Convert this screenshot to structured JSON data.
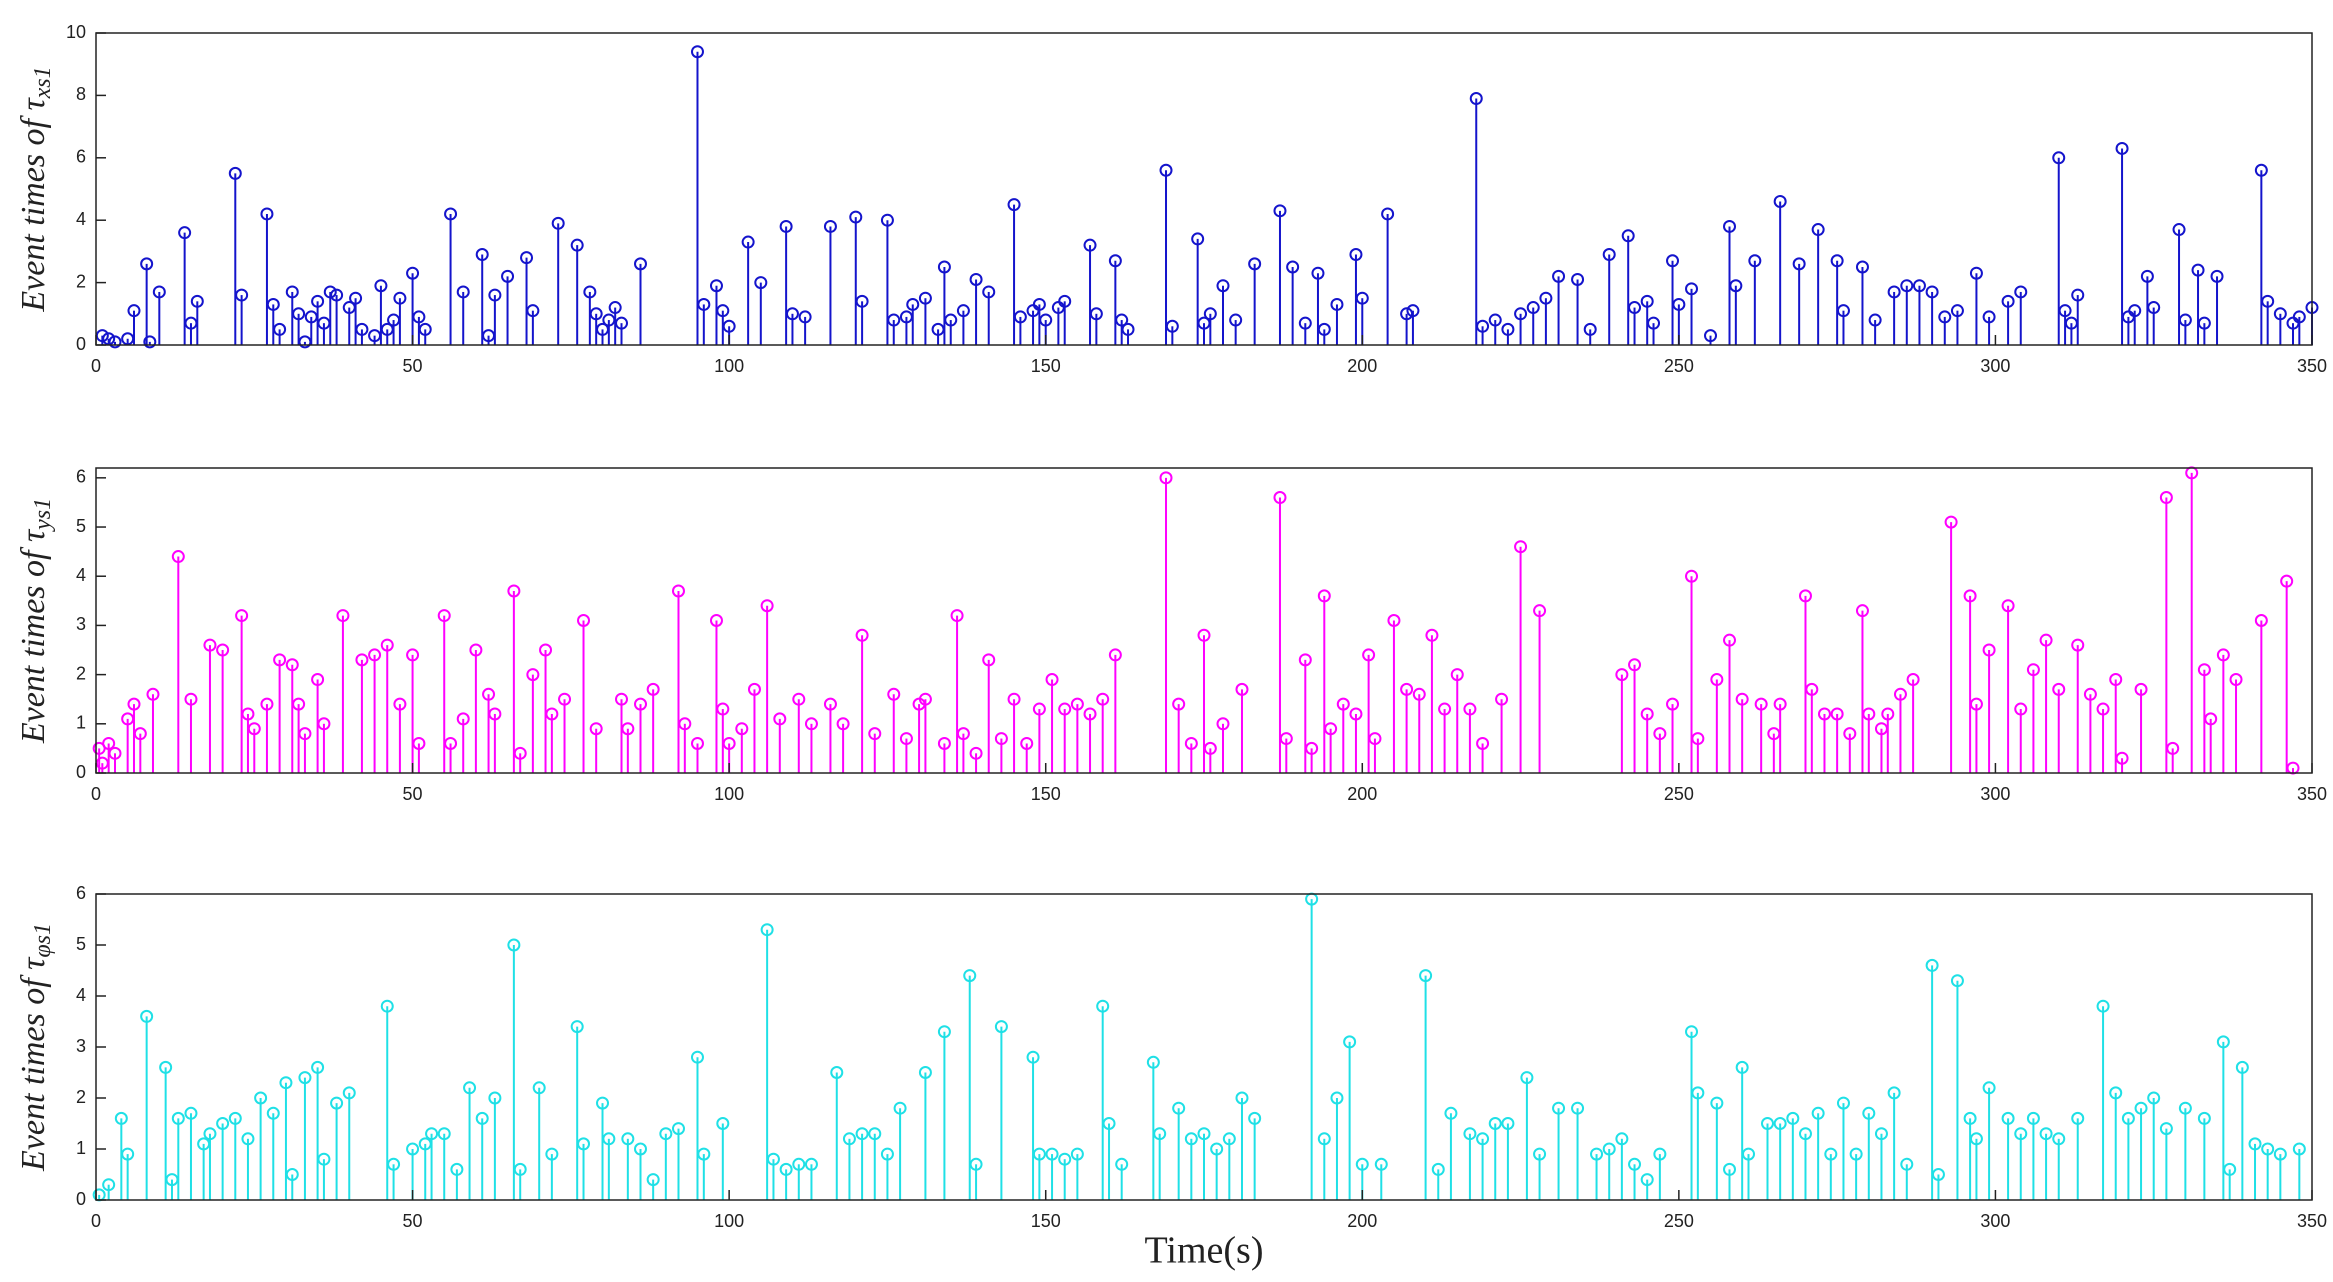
{
  "chart_data": [
    {
      "type": "stem",
      "ylabel": "Event times of τ",
      "ylabel_sub": "xs1",
      "color": "#1414cc",
      "xlim": [
        0,
        350
      ],
      "xticks": [
        0,
        50,
        100,
        150,
        200,
        250,
        300,
        350
      ],
      "ylim": [
        0,
        10
      ],
      "yticks": [
        0,
        2,
        4,
        6,
        8,
        10
      ],
      "x": [
        1,
        2,
        3,
        5,
        6,
        8,
        8.5,
        10,
        14,
        15,
        16,
        22,
        23,
        27,
        28,
        29,
        31,
        32,
        33,
        34,
        35,
        36,
        37,
        38,
        40,
        41,
        42,
        44,
        45,
        46,
        47,
        48,
        50,
        51,
        52,
        56,
        58,
        61,
        62,
        63,
        65,
        68,
        69,
        73,
        76,
        78,
        79,
        80,
        81,
        82,
        83,
        86,
        95,
        96,
        98,
        99,
        100,
        103,
        105,
        109,
        110,
        112,
        116,
        120,
        121,
        125,
        126,
        128,
        129,
        131,
        133,
        134,
        135,
        137,
        139,
        141,
        145,
        146,
        148,
        149,
        150,
        152,
        153,
        157,
        158,
        161,
        162,
        163,
        169,
        170,
        174,
        175,
        176,
        178,
        180,
        183,
        187,
        189,
        191,
        193,
        194,
        196,
        199,
        200,
        204,
        207,
        208,
        218,
        219,
        221,
        223,
        225,
        227,
        229,
        231,
        234,
        236,
        239,
        242,
        243,
        245,
        246,
        249,
        250,
        252,
        255,
        258,
        259,
        262,
        266,
        269,
        272,
        275,
        276,
        279,
        281,
        284,
        286,
        288,
        290,
        292,
        294,
        297,
        299,
        302,
        304,
        310,
        311,
        312,
        313,
        320,
        321,
        322,
        324,
        325,
        329,
        330,
        332,
        333,
        335,
        342,
        343,
        345,
        347,
        348,
        350
      ],
      "values": [
        0.3,
        0.2,
        0.1,
        0.2,
        1.1,
        2.6,
        0.1,
        1.7,
        3.6,
        0.7,
        1.4,
        5.5,
        1.6,
        4.2,
        1.3,
        0.5,
        1.7,
        1.0,
        0.1,
        0.9,
        1.4,
        0.7,
        1.7,
        1.6,
        1.2,
        1.5,
        0.5,
        0.3,
        1.9,
        0.5,
        0.8,
        1.5,
        2.3,
        0.9,
        0.5,
        4.2,
        1.7,
        2.9,
        0.3,
        1.6,
        2.2,
        2.8,
        1.1,
        3.9,
        3.2,
        1.7,
        1.0,
        0.5,
        0.8,
        1.2,
        0.7,
        2.6,
        9.4,
        1.3,
        1.9,
        1.1,
        0.6,
        3.3,
        2.0,
        3.8,
        1.0,
        0.9,
        3.8,
        4.1,
        1.4,
        4.0,
        0.8,
        0.9,
        1.3,
        1.5,
        0.5,
        2.5,
        0.8,
        1.1,
        2.1,
        1.7,
        4.5,
        0.9,
        1.1,
        1.3,
        0.8,
        1.2,
        1.4,
        3.2,
        1.0,
        2.7,
        0.8,
        0.5,
        5.6,
        0.6,
        3.4,
        0.7,
        1.0,
        1.9,
        0.8,
        2.6,
        4.3,
        2.5,
        0.7,
        2.3,
        0.5,
        1.3,
        2.9,
        1.5,
        4.2,
        1.0,
        1.1,
        7.9,
        0.6,
        0.8,
        0.5,
        1.0,
        1.2,
        1.5,
        2.2,
        2.1,
        0.5,
        2.9,
        3.5,
        1.2,
        1.4,
        0.7,
        2.7,
        1.3,
        1.8,
        0.3,
        3.8,
        1.9,
        2.7,
        4.6,
        2.6,
        3.7,
        2.7,
        1.1,
        2.5,
        0.8,
        1.7,
        1.9,
        1.9,
        1.7,
        0.9,
        1.1,
        2.3,
        0.9,
        1.4,
        1.7,
        6.0,
        1.1,
        0.7,
        1.6,
        6.3,
        0.9,
        1.1,
        2.2,
        1.2,
        3.7,
        0.8,
        2.4,
        0.7,
        2.2,
        5.6,
        1.4,
        1.0,
        0.7,
        0.9,
        1.2
      ]
    },
    {
      "type": "stem",
      "ylabel": "Event times of τ",
      "ylabel_sub": "ys1",
      "color": "#ff00ff",
      "xlim": [
        0,
        350
      ],
      "xticks": [
        0,
        50,
        100,
        150,
        200,
        250,
        300,
        350
      ],
      "ylim": [
        0,
        6.2
      ],
      "yticks": [
        0,
        1,
        2,
        3,
        4,
        5,
        6
      ],
      "x": [
        0.5,
        1,
        2,
        3,
        5,
        6,
        7,
        9,
        13,
        15,
        18,
        20,
        23,
        24,
        25,
        27,
        29,
        31,
        32,
        33,
        35,
        36,
        39,
        42,
        44,
        46,
        48,
        50,
        51,
        55,
        56,
        58,
        60,
        62,
        63,
        66,
        67,
        69,
        71,
        72,
        74,
        77,
        79,
        83,
        84,
        86,
        88,
        92,
        93,
        95,
        98,
        99,
        100,
        102,
        104,
        106,
        108,
        111,
        113,
        116,
        118,
        121,
        123,
        126,
        128,
        130,
        131,
        134,
        136,
        137,
        139,
        141,
        143,
        145,
        147,
        149,
        151,
        153,
        155,
        157,
        159,
        161,
        169,
        171,
        173,
        175,
        176,
        178,
        181,
        187,
        188,
        191,
        192,
        194,
        195,
        197,
        199,
        201,
        202,
        205,
        207,
        209,
        211,
        213,
        215,
        217,
        219,
        222,
        225,
        228,
        241,
        243,
        245,
        247,
        249,
        252,
        253,
        256,
        258,
        260,
        263,
        265,
        266,
        270,
        271,
        273,
        275,
        277,
        279,
        280,
        282,
        283,
        285,
        287,
        293,
        296,
        297,
        299,
        302,
        304,
        306,
        308,
        310,
        313,
        315,
        317,
        319,
        320,
        323,
        327,
        328,
        331,
        333,
        334,
        336,
        338,
        342,
        346,
        347
      ],
      "values": [
        0.5,
        0.2,
        0.6,
        0.4,
        1.1,
        1.4,
        0.8,
        1.6,
        4.4,
        1.5,
        2.6,
        2.5,
        3.2,
        1.2,
        0.9,
        1.4,
        2.3,
        2.2,
        1.4,
        0.8,
        1.9,
        1.0,
        3.2,
        2.3,
        2.4,
        2.6,
        1.4,
        2.4,
        0.6,
        3.2,
        0.6,
        1.1,
        2.5,
        1.6,
        1.2,
        3.7,
        0.4,
        2.0,
        2.5,
        1.2,
        1.5,
        3.1,
        0.9,
        1.5,
        0.9,
        1.4,
        1.7,
        3.7,
        1.0,
        0.6,
        3.1,
        1.3,
        0.6,
        0.9,
        1.7,
        3.4,
        1.1,
        1.5,
        1.0,
        1.4,
        1.0,
        2.8,
        0.8,
        1.6,
        0.7,
        1.4,
        1.5,
        0.6,
        3.2,
        0.8,
        0.4,
        2.3,
        0.7,
        1.5,
        0.6,
        1.3,
        1.9,
        1.3,
        1.4,
        1.2,
        1.5,
        2.4,
        6.0,
        1.4,
        0.6,
        2.8,
        0.5,
        1.0,
        1.7,
        5.6,
        0.7,
        2.3,
        0.5,
        3.6,
        0.9,
        1.4,
        1.2,
        2.4,
        0.7,
        3.1,
        1.7,
        1.6,
        2.8,
        1.3,
        2.0,
        1.3,
        0.6,
        1.5,
        4.6,
        3.3,
        2.0,
        2.2,
        1.2,
        0.8,
        1.4,
        4.0,
        0.7,
        1.9,
        2.7,
        1.5,
        1.4,
        0.8,
        1.4,
        3.6,
        1.7,
        1.2,
        1.2,
        0.8,
        3.3,
        1.2,
        0.9,
        1.2,
        1.6,
        1.9,
        5.1,
        3.6,
        1.4,
        2.5,
        3.4,
        1.3,
        2.1,
        2.7,
        1.7,
        2.6,
        1.6,
        1.3,
        1.9,
        0.3,
        1.7,
        5.6,
        0.5,
        6.1,
        2.1,
        1.1,
        2.4,
        1.9,
        3.1,
        3.9,
        0.1
      ]
    },
    {
      "type": "stem",
      "ylabel": "Event times of τ",
      "ylabel_sub": "φs1",
      "xlabel": "Time(s)",
      "color": "#1fe0e6",
      "xlim": [
        0,
        350
      ],
      "xticks": [
        0,
        50,
        100,
        150,
        200,
        250,
        300,
        350
      ],
      "ylim": [
        0,
        6
      ],
      "yticks": [
        0,
        1,
        2,
        3,
        4,
        5,
        6
      ],
      "x": [
        0.5,
        2,
        4,
        5,
        8,
        11,
        12,
        13,
        15,
        17,
        18,
        20,
        22,
        24,
        26,
        28,
        30,
        31,
        33,
        35,
        36,
        38,
        40,
        46,
        47,
        50,
        52,
        53,
        55,
        57,
        59,
        61,
        63,
        66,
        67,
        70,
        72,
        76,
        77,
        80,
        81,
        84,
        86,
        88,
        90,
        92,
        95,
        96,
        99,
        106,
        107,
        109,
        111,
        113,
        117,
        119,
        121,
        123,
        125,
        127,
        131,
        134,
        138,
        139,
        143,
        148,
        149,
        151,
        153,
        155,
        159,
        160,
        162,
        167,
        168,
        171,
        173,
        175,
        177,
        179,
        181,
        183,
        192,
        194,
        196,
        198,
        200,
        203,
        210,
        212,
        214,
        217,
        219,
        221,
        223,
        226,
        228,
        231,
        234,
        237,
        239,
        241,
        243,
        245,
        247,
        252,
        253,
        256,
        258,
        260,
        261,
        264,
        266,
        268,
        270,
        272,
        274,
        276,
        278,
        280,
        282,
        284,
        286,
        290,
        291,
        294,
        296,
        297,
        299,
        302,
        304,
        306,
        308,
        310,
        313,
        317,
        319,
        321,
        323,
        325,
        327,
        330,
        333,
        336,
        337,
        339,
        341,
        343,
        345,
        348
      ],
      "values": [
        0.1,
        0.3,
        1.6,
        0.9,
        3.6,
        2.6,
        0.4,
        1.6,
        1.7,
        1.1,
        1.3,
        1.5,
        1.6,
        1.2,
        2.0,
        1.7,
        2.3,
        0.5,
        2.4,
        2.6,
        0.8,
        1.9,
        2.1,
        3.8,
        0.7,
        1.0,
        1.1,
        1.3,
        1.3,
        0.6,
        2.2,
        1.6,
        2.0,
        5.0,
        0.6,
        2.2,
        0.9,
        3.4,
        1.1,
        1.9,
        1.2,
        1.2,
        1.0,
        0.4,
        1.3,
        1.4,
        2.8,
        0.9,
        1.5,
        5.3,
        0.8,
        0.6,
        0.7,
        0.7,
        2.5,
        1.2,
        1.3,
        1.3,
        0.9,
        1.8,
        2.5,
        3.3,
        4.4,
        0.7,
        3.4,
        2.8,
        0.9,
        0.9,
        0.8,
        0.9,
        3.8,
        1.5,
        0.7,
        2.7,
        1.3,
        1.8,
        1.2,
        1.3,
        1.0,
        1.2,
        2.0,
        1.6,
        5.9,
        1.2,
        2.0,
        3.1,
        0.7,
        0.7,
        4.4,
        0.6,
        1.7,
        1.3,
        1.2,
        1.5,
        1.5,
        2.4,
        0.9,
        1.8,
        1.8,
        0.9,
        1.0,
        1.2,
        0.7,
        0.4,
        0.9,
        3.3,
        2.1,
        1.9,
        0.6,
        2.6,
        0.9,
        1.5,
        1.5,
        1.6,
        1.3,
        1.7,
        0.9,
        1.9,
        0.9,
        1.7,
        1.3,
        2.1,
        0.7,
        4.6,
        0.5,
        4.3,
        1.6,
        1.2,
        2.2,
        1.6,
        1.3,
        1.6,
        1.3,
        1.2,
        1.6,
        3.8,
        2.1,
        1.6,
        1.8,
        2.0,
        1.4,
        1.8,
        1.6,
        3.1,
        0.6,
        2.6,
        1.1,
        1.0,
        0.9,
        1.0
      ]
    }
  ]
}
